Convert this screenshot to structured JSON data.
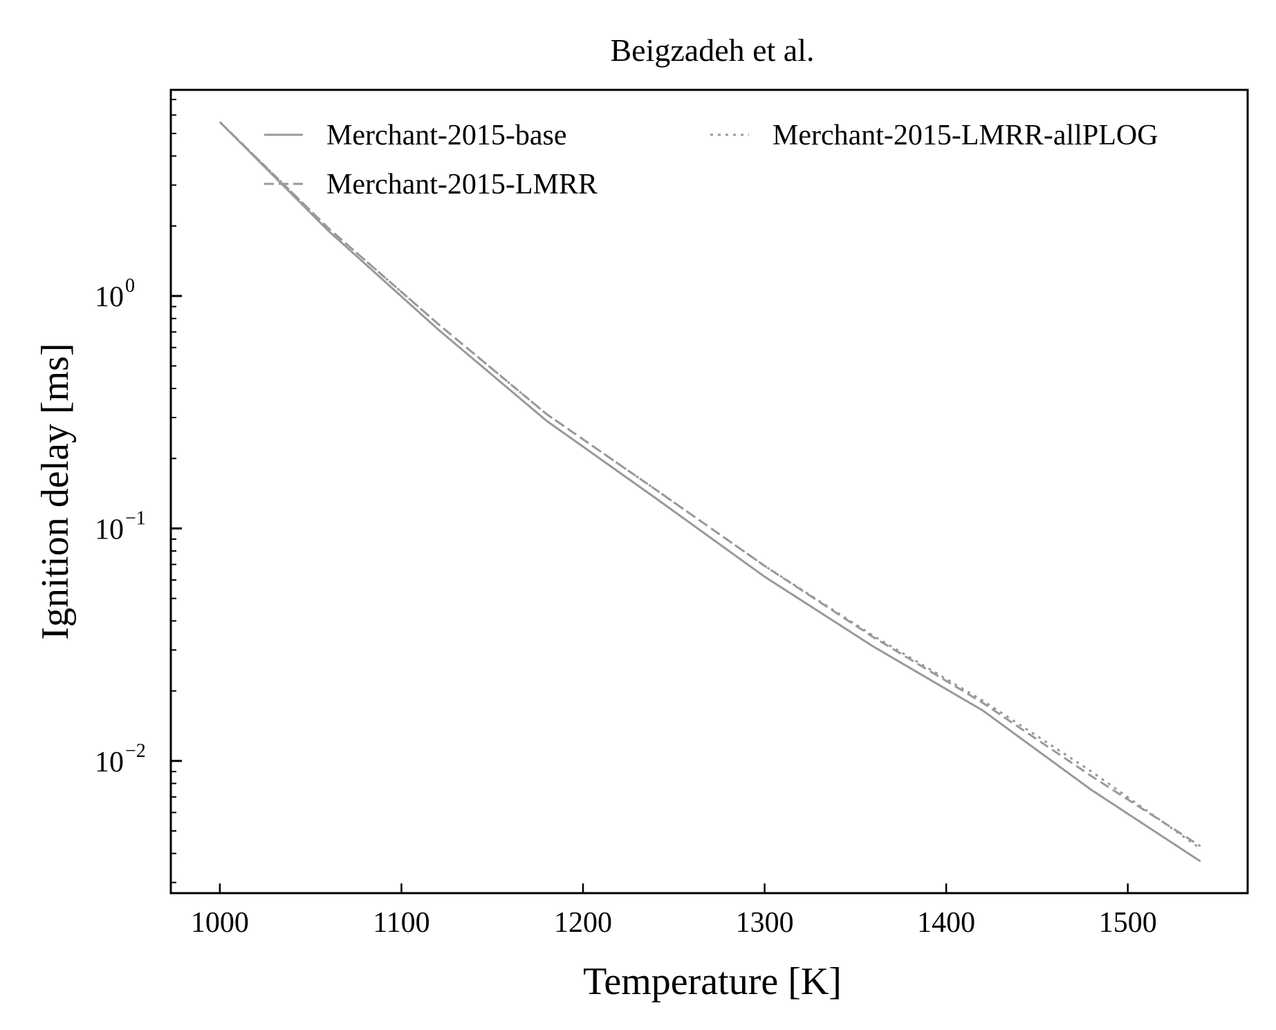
{
  "chart_data": {
    "type": "line",
    "title": "Beigzadeh et al.",
    "xlabel": "Temperature [K]",
    "ylabel": "Ignition delay [ms]",
    "xlim": [
      973,
      1566
    ],
    "ylim": [
      0.0027,
      7.7
    ],
    "yscale": "log",
    "xticks": [
      1000,
      1100,
      1200,
      1300,
      1400,
      1500
    ],
    "xtick_labels": [
      "1000",
      "1100",
      "1200",
      "1300",
      "1400",
      "1500"
    ],
    "yticks": [
      0.01,
      0.1,
      1
    ],
    "ytick_labels": [
      {
        "base": "10",
        "exp": "−2"
      },
      {
        "base": "10",
        "exp": "−1"
      },
      {
        "base": "10",
        "exp": "0"
      }
    ],
    "grid": false,
    "legend": {
      "position": "top",
      "columns": 2
    },
    "series": [
      {
        "name": "Merchant-2015-base",
        "style": "solid",
        "color": "#999999",
        "x": [
          1000,
          1060,
          1120,
          1180,
          1240,
          1300,
          1360,
          1420,
          1480,
          1540
        ],
        "y": [
          5.6,
          1.9,
          0.72,
          0.29,
          0.135,
          0.062,
          0.031,
          0.0165,
          0.0075,
          0.0037
        ]
      },
      {
        "name": "Merchant-2015-LMRR",
        "style": "dashed",
        "color": "#999999",
        "x": [
          1000,
          1060,
          1120,
          1180,
          1240,
          1300,
          1360,
          1420,
          1480,
          1540
        ],
        "y": [
          5.6,
          1.95,
          0.76,
          0.31,
          0.147,
          0.069,
          0.034,
          0.0178,
          0.0086,
          0.0043
        ]
      },
      {
        "name": "Merchant-2015-LMRR-allPLOG",
        "style": "dotted",
        "color": "#999999",
        "x": [
          1000,
          1060,
          1120,
          1180,
          1240,
          1300,
          1360,
          1420,
          1480,
          1540
        ],
        "y": [
          5.6,
          1.95,
          0.76,
          0.31,
          0.147,
          0.069,
          0.0345,
          0.0182,
          0.009,
          0.0042
        ]
      }
    ]
  }
}
